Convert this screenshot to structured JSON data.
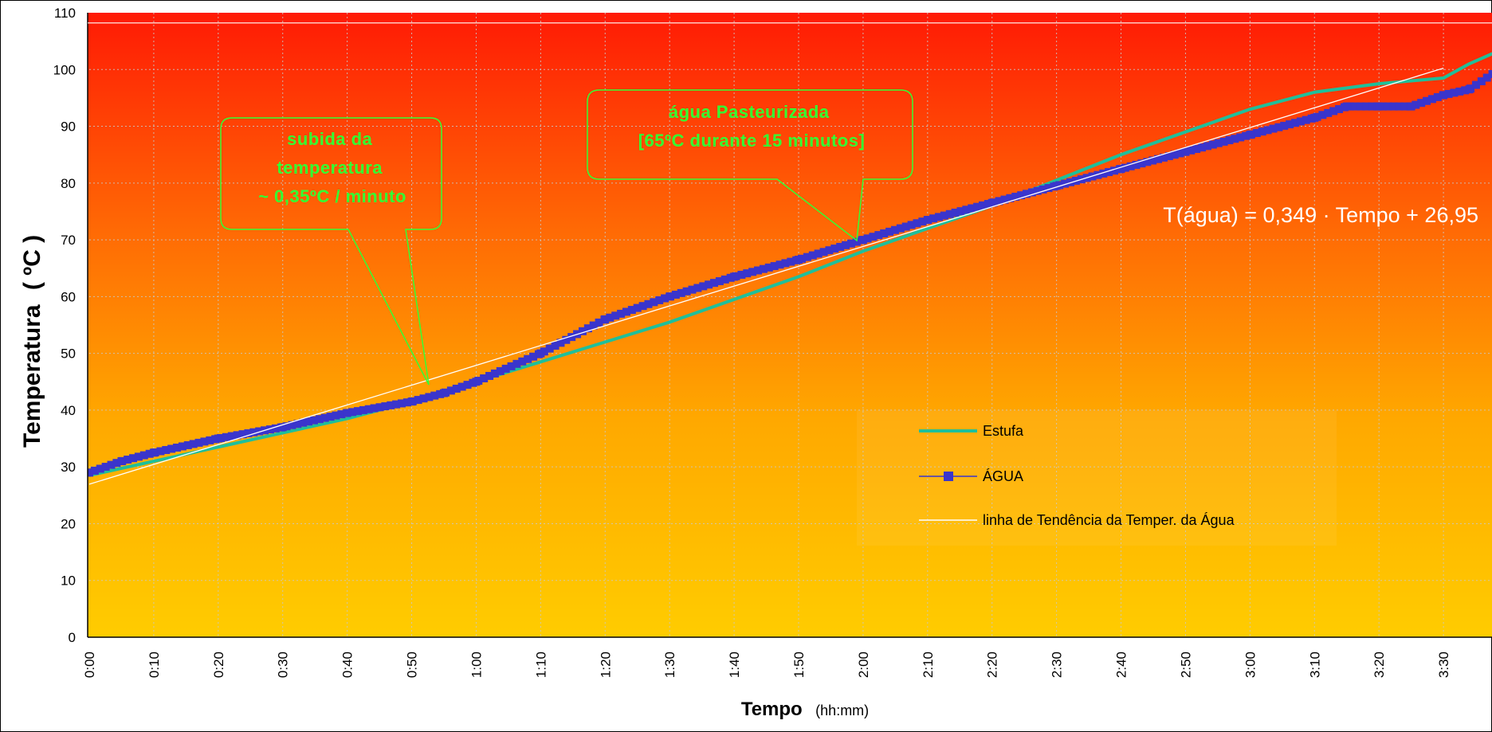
{
  "chart_data": {
    "type": "line",
    "title": "",
    "xlabel": "Tempo",
    "xlabel_unit": "(hh:mm)",
    "ylabel": "Temperatura",
    "ylabel_unit": "( ºC )",
    "ylim": [
      0,
      110
    ],
    "yticks": [
      "0",
      "10",
      "20",
      "30",
      "40",
      "50",
      "60",
      "70",
      "80",
      "90",
      "100",
      "110"
    ],
    "xlim_minutes": [
      0,
      220
    ],
    "xticks": [
      "0:00",
      "0:10",
      "0:20",
      "0:30",
      "0:40",
      "0:50",
      "1:00",
      "1:10",
      "1:20",
      "1:30",
      "1:40",
      "1:50",
      "2:00",
      "2:10",
      "2:20",
      "2:30",
      "2:40",
      "2:50",
      "3:00",
      "3:10",
      "3:20",
      "3:30"
    ],
    "grid": true,
    "legend_position": "bottom-right",
    "trendline_equation": "T(água) = 0,349 · Tempo + 26,95",
    "series": [
      {
        "name": "Estufa",
        "color": "#1fbf9a",
        "x": [
          "0:00",
          "0:10",
          "0:20",
          "0:30",
          "0:40",
          "0:50",
          "1:00",
          "1:10",
          "1:20",
          "1:30",
          "1:40",
          "1:50",
          "2:00",
          "2:10",
          "2:20",
          "2:30",
          "2:40",
          "2:50",
          "3:00",
          "3:10",
          "3:20",
          "3:30",
          "3:34",
          "3:40"
        ],
        "y": [
          28.5,
          31,
          33.5,
          36,
          38.5,
          41.5,
          45,
          48.5,
          52,
          55.5,
          59.5,
          63.5,
          68,
          72,
          76,
          80.5,
          85,
          89,
          93,
          96,
          97.5,
          98.5,
          101,
          104
        ]
      },
      {
        "name": "ÁGUA",
        "color": "#3a35cc",
        "x": [
          "0:00",
          "0:05",
          "0:10",
          "0:20",
          "0:30",
          "0:40",
          "0:50",
          "0:55",
          "1:00",
          "1:10",
          "1:20",
          "1:30",
          "1:40",
          "1:50",
          "2:00",
          "2:10",
          "2:20",
          "2:30",
          "2:40",
          "2:50",
          "3:00",
          "3:10",
          "3:15",
          "3:20",
          "3:25",
          "3:30",
          "3:34",
          "3:40"
        ],
        "y": [
          29,
          31,
          32.5,
          35,
          37,
          39.5,
          41.5,
          43,
          45,
          50,
          56,
          60,
          63.5,
          66.5,
          70,
          73.5,
          76.5,
          79.5,
          82.5,
          85.5,
          88.5,
          91.5,
          93.5,
          93.5,
          93.5,
          95.5,
          96.5,
          101
        ]
      },
      {
        "name": "linha de Tendência da Temper. da Água",
        "color": "#ffffff",
        "x": [
          "0:00",
          "3:30"
        ],
        "y": [
          26.95,
          100.24
        ]
      }
    ],
    "annotations": [
      {
        "lines": [
          "subida da",
          "temperatura",
          "~ 0,35ºC / minuto"
        ]
      },
      {
        "lines": [
          "água Pasteurizada",
          "[65ºC durante 15 minutos]"
        ]
      }
    ]
  }
}
